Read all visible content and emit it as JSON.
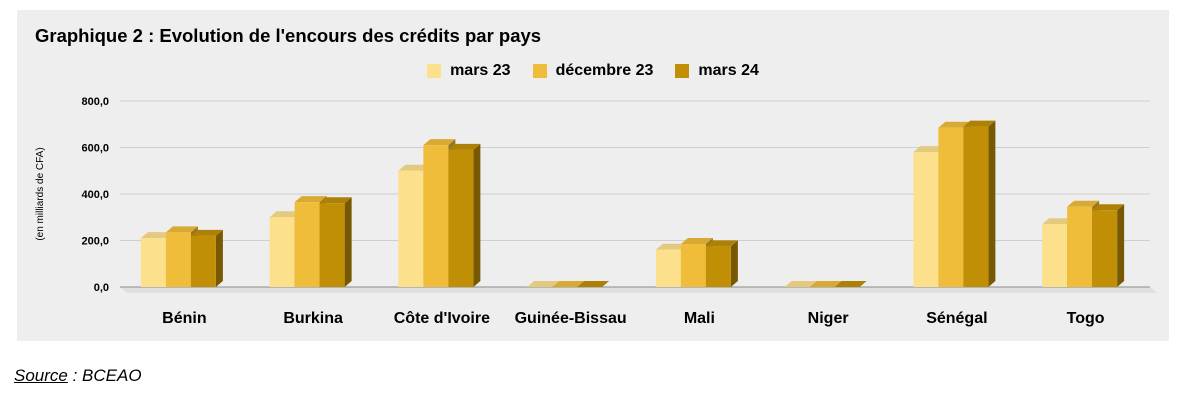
{
  "chart_data": {
    "type": "bar",
    "title": "Graphique 2 : Evolution de l'encours des crédits par pays",
    "ylabel": "(en milliards de CFA)",
    "xlabel": "",
    "categories": [
      "Bénin",
      "Burkina",
      "Côte d'Ivoire",
      "Guinée-Bissau",
      "Mali",
      "Niger",
      "Sénégal",
      "Togo"
    ],
    "series": [
      {
        "name": "mars 23",
        "color": "#fde08c",
        "values": [
          210,
          300,
          500,
          0,
          160,
          0,
          580,
          270
        ]
      },
      {
        "name": "décembre 23",
        "color": "#f0bd3a",
        "values": [
          235,
          365,
          610,
          0,
          185,
          0,
          685,
          345
        ]
      },
      {
        "name": "mars 24",
        "color": "#c08f06",
        "values": [
          220,
          360,
          590,
          0,
          175,
          0,
          690,
          330
        ]
      }
    ],
    "yticks": [
      "0,0",
      "200,0",
      "400,0",
      "600,0",
      "800,0"
    ],
    "ytick_values": [
      0,
      200,
      400,
      600,
      800
    ],
    "ylim": [
      0,
      800
    ],
    "grid": true,
    "legend_position": "top-center",
    "style_3d": true
  },
  "source": {
    "label": "Source",
    "text": " : BCEAO"
  }
}
